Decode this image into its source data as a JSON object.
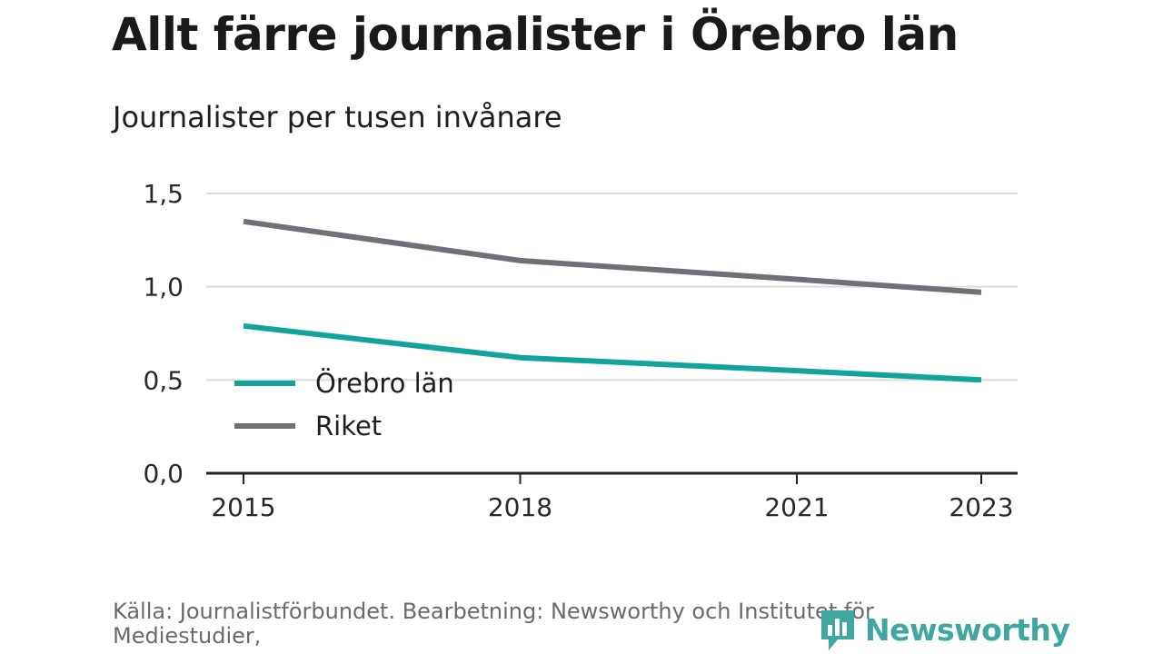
{
  "chart_data": {
    "type": "line",
    "title": "Allt färre journalister i Örebro län",
    "subtitle": "Journalister per tusen invånare",
    "x": [
      2015,
      2018,
      2021,
      2023
    ],
    "x_ticks": [
      "2015",
      "2018",
      "2021",
      "2023"
    ],
    "xlim": [
      2015,
      2023
    ],
    "ylim": [
      0,
      1.5
    ],
    "y_ticks": [
      "0,0",
      "0,5",
      "1,0",
      "1,5"
    ],
    "y_tick_values": [
      0,
      0.5,
      1.0,
      1.5
    ],
    "grid": true,
    "legend_position": "bottom-left",
    "series": [
      {
        "name": "Örebro län",
        "color": "#0fa59b",
        "values": [
          0.79,
          0.62,
          0.55,
          0.5
        ]
      },
      {
        "name": "Riket",
        "color": "#707078",
        "values": [
          1.35,
          1.14,
          1.04,
          0.97
        ]
      }
    ]
  },
  "footer": {
    "source": "Källa: Journalistförbundet. Bearbetning: Newsworthy och Institutet för Mediestudier,",
    "brand": "Newsworthy",
    "brand_color": "#3fa6a0",
    "brand_icon": "bar-chart-speech-bubble-icon"
  }
}
